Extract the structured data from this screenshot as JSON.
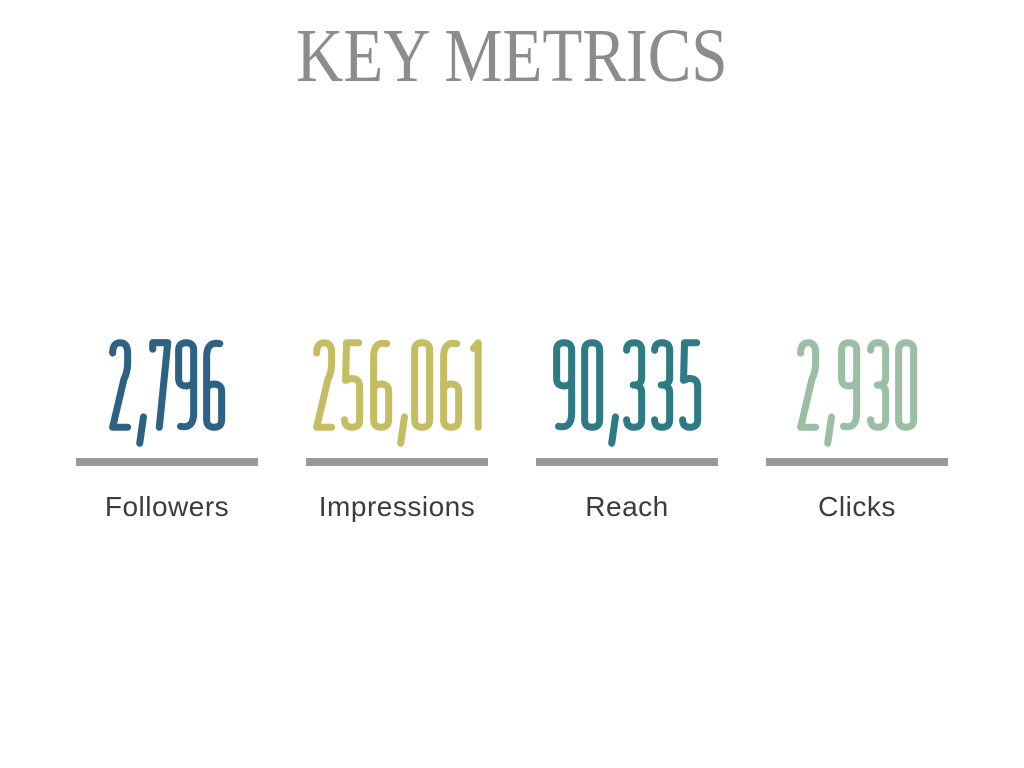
{
  "header": {
    "title": "KEY METRICS"
  },
  "metrics": [
    {
      "value": "2,796",
      "label": "Followers",
      "color": "#2d6285"
    },
    {
      "value": "256,061",
      "label": "Impressions",
      "color": "#c5bd62"
    },
    {
      "value": "90,335",
      "label": "Reach",
      "color": "#2e7b84"
    },
    {
      "value": "2,930",
      "label": "Clicks",
      "color": "#9bbea4"
    }
  ],
  "divider_color": "#9a9a9a",
  "colors": {
    "title": "#8c8c8c",
    "label": "#3c3c3c",
    "background": "#ffffff"
  },
  "chart_data": {
    "type": "table",
    "title": "KEY METRICS",
    "categories": [
      "Followers",
      "Impressions",
      "Reach",
      "Clicks"
    ],
    "values": [
      2796,
      256061,
      90335,
      2930
    ],
    "value_labels": [
      "2,796",
      "256,061",
      "90,335",
      "2,930"
    ],
    "series_colors": [
      "#2d6285",
      "#c5bd62",
      "#2e7b84",
      "#9bbea4"
    ],
    "layout": "four stat counters in a row, gray underline bar and category label beneath each number"
  }
}
